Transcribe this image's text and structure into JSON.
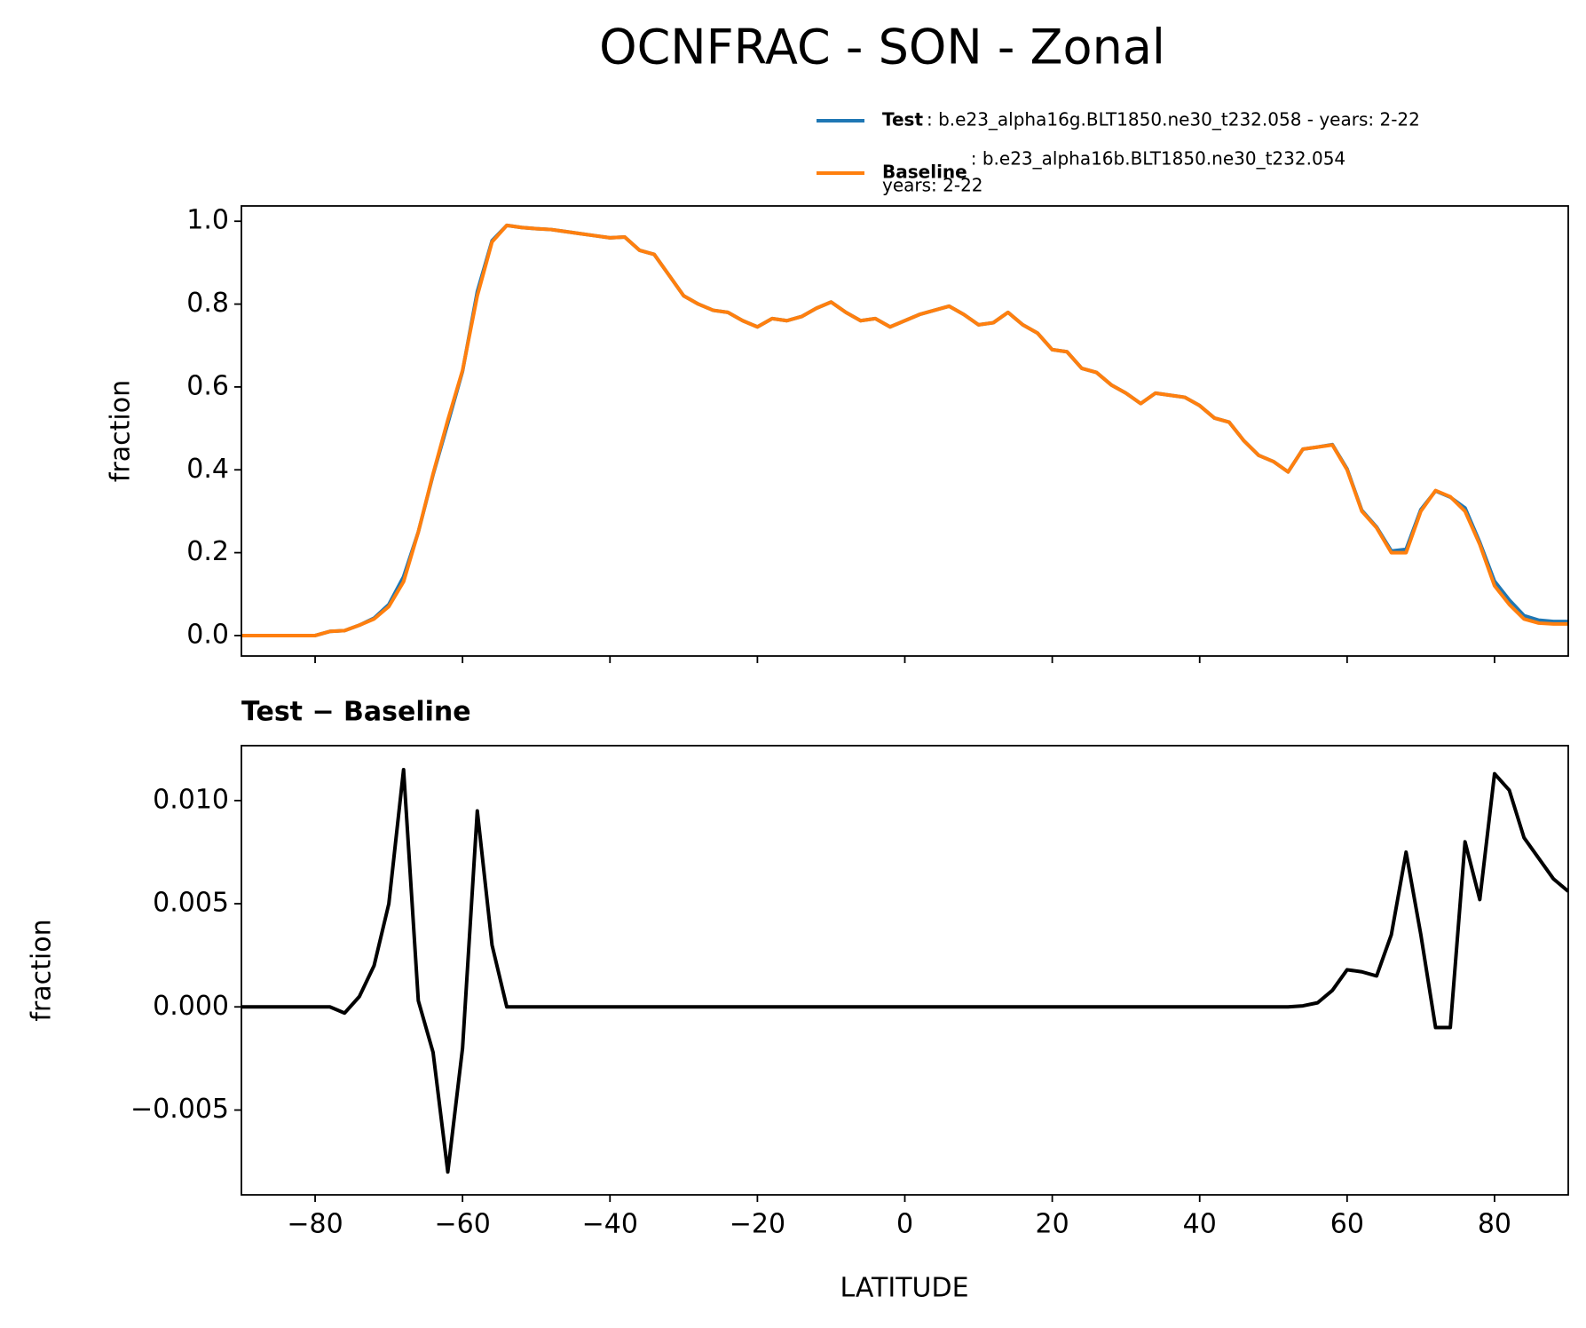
{
  "chart_data": [
    {
      "type": "line",
      "title": "OCNFRAC - SON - Zonal",
      "ylabel": "fraction",
      "x": [
        -90,
        -88,
        -86,
        -84,
        -82,
        -80,
        -78,
        -76,
        -74,
        -72,
        -70,
        -68,
        -66,
        -64,
        -62,
        -60,
        -58,
        -56,
        -54,
        -52,
        -50,
        -48,
        -46,
        -44,
        -42,
        -40,
        -38,
        -36,
        -34,
        -32,
        -30,
        -28,
        -26,
        -24,
        -22,
        -20,
        -18,
        -16,
        -14,
        -12,
        -10,
        -8,
        -6,
        -4,
        -2,
        0,
        2,
        4,
        6,
        8,
        10,
        12,
        14,
        16,
        18,
        20,
        22,
        24,
        26,
        28,
        30,
        32,
        34,
        36,
        38,
        40,
        42,
        44,
        46,
        48,
        50,
        52,
        54,
        56,
        58,
        60,
        62,
        64,
        66,
        68,
        70,
        72,
        74,
        76,
        78,
        80,
        82,
        84,
        86,
        88,
        90
      ],
      "series": [
        {
          "name": "Test",
          "description": [
            ": b.e23_alpha16g.BLT1850.ne30_t232.058 - years: 2-22"
          ],
          "color": "#1f77b4",
          "values": [
            0,
            0,
            0,
            0,
            0,
            0,
            0.01,
            0.012,
            0.025,
            0.042,
            0.075,
            0.142,
            0.25,
            0.388,
            0.512,
            0.638,
            0.83,
            0.953,
            0.99,
            0.985,
            0.982,
            0.98,
            0.975,
            0.97,
            0.965,
            0.96,
            0.962,
            0.93,
            0.92,
            0.87,
            0.82,
            0.8,
            0.785,
            0.78,
            0.76,
            0.745,
            0.765,
            0.76,
            0.77,
            0.79,
            0.805,
            0.78,
            0.76,
            0.765,
            0.745,
            0.76,
            0.775,
            0.785,
            0.795,
            0.775,
            0.75,
            0.755,
            0.78,
            0.75,
            0.73,
            0.69,
            0.685,
            0.645,
            0.635,
            0.605,
            0.585,
            0.56,
            0.585,
            0.58,
            0.575,
            0.555,
            0.525,
            0.515,
            0.47,
            0.435,
            0.42,
            0.395,
            0.45,
            0.455,
            0.461,
            0.402,
            0.302,
            0.262,
            0.204,
            0.208,
            0.304,
            0.349,
            0.334,
            0.308,
            0.225,
            0.131,
            0.086,
            0.048,
            0.037,
            0.034,
            0.034
          ]
        },
        {
          "name": "Baseline",
          "description": [
            ": b.e23_alpha16b.BLT1850.ne30_t232.054",
            "years: 2-22"
          ],
          "color": "#ff7f0e",
          "values": [
            0,
            0,
            0,
            0,
            0,
            0,
            0.01,
            0.012,
            0.025,
            0.04,
            0.07,
            0.13,
            0.25,
            0.39,
            0.52,
            0.64,
            0.82,
            0.95,
            0.99,
            0.985,
            0.982,
            0.98,
            0.975,
            0.97,
            0.965,
            0.96,
            0.962,
            0.93,
            0.92,
            0.87,
            0.82,
            0.8,
            0.785,
            0.78,
            0.76,
            0.745,
            0.765,
            0.76,
            0.77,
            0.79,
            0.805,
            0.78,
            0.76,
            0.765,
            0.745,
            0.76,
            0.775,
            0.785,
            0.795,
            0.775,
            0.75,
            0.755,
            0.78,
            0.75,
            0.73,
            0.69,
            0.685,
            0.645,
            0.635,
            0.605,
            0.585,
            0.56,
            0.585,
            0.58,
            0.575,
            0.555,
            0.525,
            0.515,
            0.47,
            0.435,
            0.42,
            0.395,
            0.45,
            0.455,
            0.46,
            0.4,
            0.3,
            0.26,
            0.2,
            0.2,
            0.3,
            0.35,
            0.335,
            0.3,
            0.22,
            0.12,
            0.075,
            0.04,
            0.03,
            0.028,
            0.028
          ]
        }
      ],
      "xlim": [
        -90,
        90
      ],
      "xticks": [
        -80,
        -60,
        -40,
        -20,
        0,
        20,
        40,
        60,
        80
      ],
      "xtick_labels": false,
      "ylim": [
        -0.0494,
        1.0369
      ],
      "yticks": [
        {
          "value": 0,
          "label": "0.0"
        },
        0.2,
        0.4,
        0.6,
        0.8,
        {
          "value": 1,
          "label": "1.0"
        }
      ]
    },
    {
      "type": "line",
      "title": "Test − Baseline",
      "ylabel": "fraction",
      "xlabel": "LATITUDE",
      "x": [
        -90,
        -88,
        -86,
        -84,
        -82,
        -80,
        -78,
        -76,
        -74,
        -72,
        -70,
        -68,
        -66,
        -64,
        -62,
        -60,
        -58,
        -56,
        -54,
        -52,
        -50,
        -48,
        -46,
        -44,
        -42,
        -40,
        -38,
        -36,
        -34,
        -32,
        -30,
        -28,
        -26,
        -24,
        -22,
        -20,
        -18,
        -16,
        -14,
        -12,
        -10,
        -8,
        -6,
        -4,
        -2,
        0,
        2,
        4,
        6,
        8,
        10,
        12,
        14,
        16,
        18,
        20,
        22,
        24,
        26,
        28,
        30,
        32,
        34,
        36,
        38,
        40,
        42,
        44,
        46,
        48,
        50,
        52,
        54,
        56,
        58,
        60,
        62,
        64,
        66,
        68,
        70,
        72,
        74,
        76,
        78,
        80,
        82,
        84,
        86,
        88,
        90
      ],
      "series": [
        {
          "color": "#000000",
          "values": [
            0,
            0,
            0,
            0,
            0,
            0,
            0,
            -0.0003,
            0.0005,
            0.002,
            0.005,
            0.0115,
            0.0003,
            -0.0022,
            -0.008,
            -0.002,
            0.0095,
            0.003,
            0,
            0,
            0,
            0,
            0,
            0,
            0,
            0,
            0,
            0,
            0,
            0,
            0,
            0,
            0,
            0,
            0,
            0,
            0,
            0,
            0,
            0,
            0,
            0,
            0,
            0,
            0,
            0,
            0,
            0,
            0,
            0,
            0,
            0,
            0,
            0,
            0,
            0,
            0,
            0,
            0,
            0,
            0,
            0,
            0,
            0,
            0,
            0,
            0,
            0,
            0,
            0,
            0,
            0,
            5e-05,
            0.0002,
            0.0008,
            0.0018,
            0.0017,
            0.0015,
            0.0035,
            0.0075,
            0.0035,
            -0.001,
            -0.001,
            0.008,
            0.0052,
            0.0113,
            0.0105,
            0.0082,
            0.0072,
            0.0062,
            0.0056
          ]
        }
      ],
      "xlim": [
        -90,
        90
      ],
      "xticks": [
        {
          "value": -80,
          "label": "−80"
        },
        {
          "value": -60,
          "label": "−60"
        },
        {
          "value": -40,
          "label": "−40"
        },
        {
          "value": -20,
          "label": "−20"
        },
        0,
        20,
        40,
        60,
        80
      ],
      "xtick_labels": true,
      "ylim": [
        -0.00911,
        0.01266
      ],
      "yticks": [
        {
          "value": -0.005,
          "label": "−0.005"
        },
        {
          "value": 0,
          "label": "0.000"
        },
        {
          "value": 0.005,
          "label": "0.005"
        },
        {
          "value": 0.01,
          "label": "0.010"
        }
      ]
    }
  ]
}
